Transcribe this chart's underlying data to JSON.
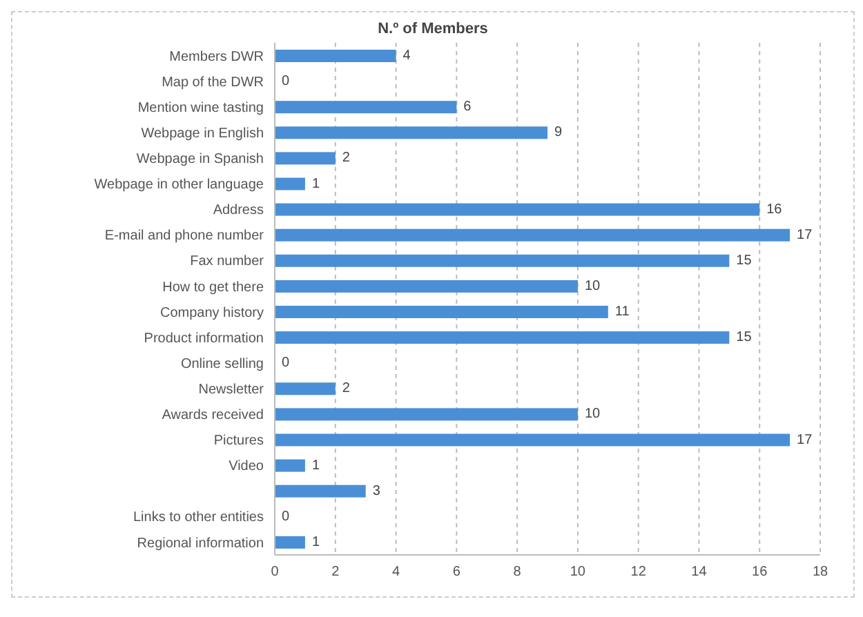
{
  "chart_data": {
    "type": "bar",
    "orientation": "horizontal",
    "title": "N.º of Members",
    "categories": [
      "Members DWR",
      "Map of the DWR",
      "Mention wine tasting",
      "Webpage in English",
      "Webpage in Spanish",
      "Webpage in other language",
      "Address",
      "E-mail and phone number",
      "Fax number",
      "How to get there",
      "Company history",
      "Product information",
      "Online selling",
      "Newsletter",
      "Awards received",
      "Pictures",
      "Video",
      null,
      "Links to other entities",
      "Regional information"
    ],
    "values": [
      4,
      0,
      6,
      9,
      2,
      1,
      16,
      17,
      15,
      10,
      11,
      15,
      0,
      2,
      10,
      17,
      1,
      3,
      0,
      1
    ],
    "color": "#4a8fd6",
    "xlim": [
      0,
      18
    ],
    "xticks": [
      0,
      2,
      4,
      6,
      8,
      10,
      12,
      14,
      16,
      18
    ],
    "grid": "x",
    "data_labels": true
  }
}
